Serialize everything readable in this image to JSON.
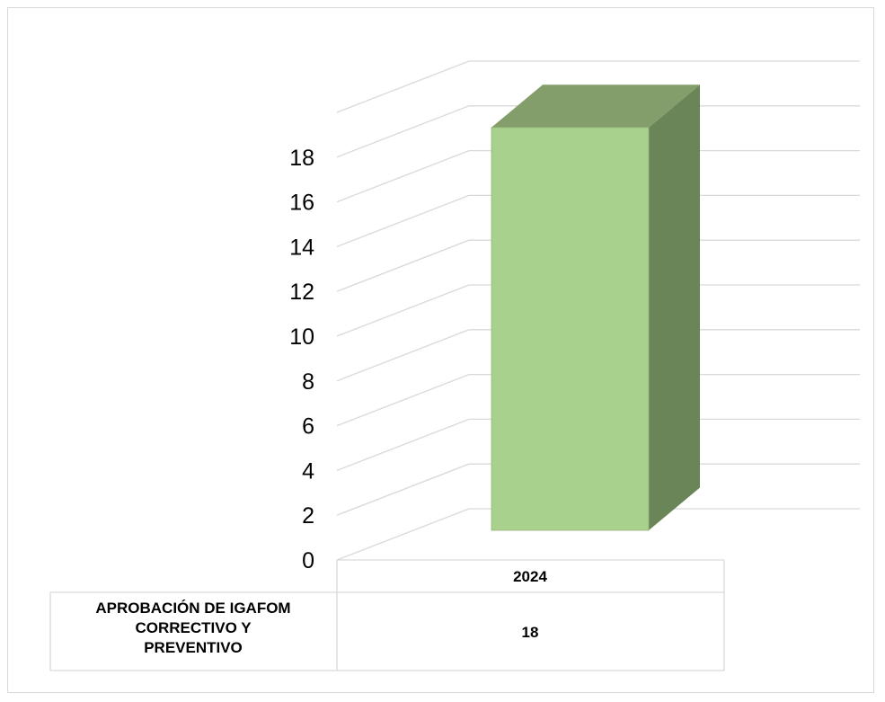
{
  "chart_data": {
    "type": "bar",
    "title": "",
    "xlabel": "",
    "ylabel": "",
    "categories": [
      "2024"
    ],
    "series": [
      {
        "name": "APROBACIÓN DE IGAFOM CORRECTIVO Y PREVENTIVO",
        "values": [
          18
        ]
      }
    ],
    "ylim": [
      0,
      18
    ],
    "y_ticks": [
      0,
      2,
      4,
      6,
      8,
      10,
      12,
      14,
      16,
      18
    ],
    "grid": true,
    "three_d": true,
    "data_table": {
      "header": "2024",
      "row_label_lines": [
        "APROBACIÓN DE IGAFOM",
        "CORRECTIVO Y",
        "PREVENTIVO"
      ],
      "row_value": "18"
    },
    "colors": {
      "bar_front": "#a9d18e",
      "bar_top": "#839e6b",
      "bar_side": "#6a8558",
      "bar_edge": "#93b27a",
      "grid": "#d9d9d9",
      "table_border": "#d9d9d9"
    }
  }
}
